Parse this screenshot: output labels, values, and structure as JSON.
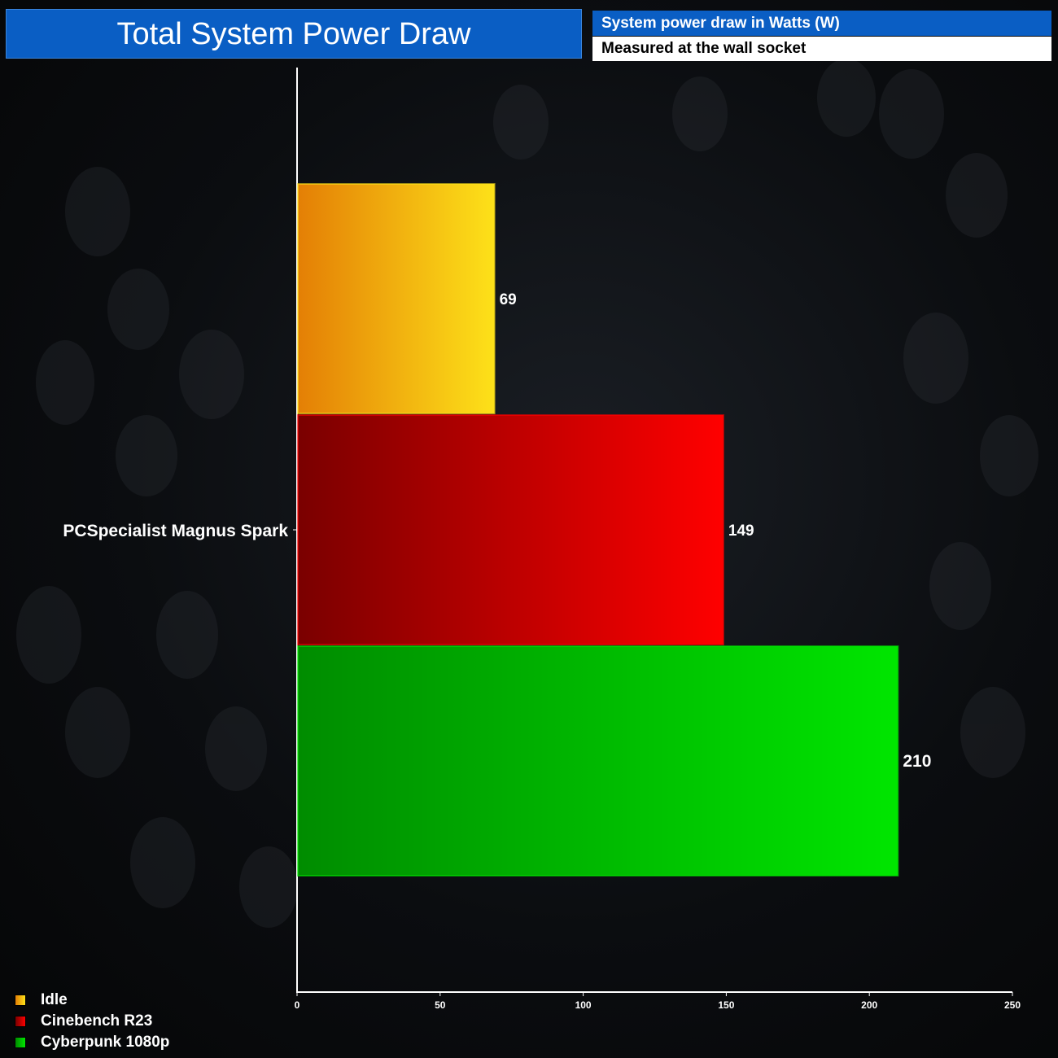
{
  "header": {
    "title": "Total System Power Draw",
    "subtitle": "System power draw in Watts (W)",
    "note": "Measured at the wall socket"
  },
  "chart_data": {
    "type": "bar",
    "orientation": "horizontal",
    "categories": [
      "PCSpecialist Magnus Spark"
    ],
    "series": [
      {
        "name": "Idle",
        "values": [
          69
        ],
        "colors": [
          "#e47f05",
          "#fde119"
        ]
      },
      {
        "name": "Cinebench R23",
        "values": [
          149
        ],
        "colors": [
          "#7a0000",
          "#ff0000"
        ]
      },
      {
        "name": "Cyberpunk 1080p",
        "values": [
          210
        ],
        "colors": [
          "#008c00",
          "#00e600"
        ]
      }
    ],
    "xlim": [
      0,
      250
    ],
    "xticks": [
      "0",
      "50",
      "100",
      "150",
      "200",
      "250"
    ],
    "grid": false,
    "legend": "bottom-left"
  }
}
